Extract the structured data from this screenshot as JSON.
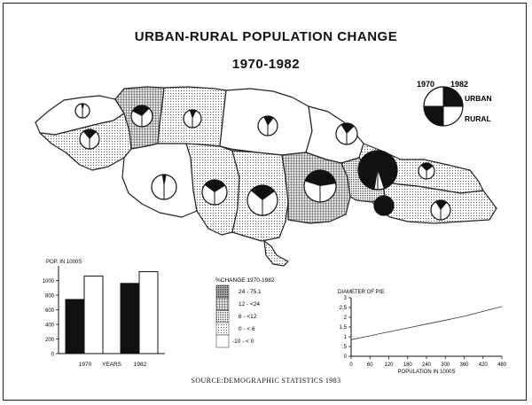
{
  "title": "URBAN-RURAL POPULATION CHANGE",
  "subtitle": "1970-1982",
  "source": "SOURCE:DEMOGRAPHIC STATISTICS 1983",
  "pie_key": {
    "year_left": "1970",
    "year_right": "1982",
    "label_urban": "URBAN",
    "label_rural": "RURAL"
  },
  "change_legend": {
    "title": "%CHANGE 1970-1982",
    "classes": [
      "24 - 75.1",
      "12 - <24",
      "6 - <12",
      "0 - < 6",
      "-10 - < 0"
    ]
  },
  "chart_data": [
    {
      "type": "bar",
      "ylabel": "POP. IN 1000S",
      "xlabel": "YEARS",
      "ylim": [
        0,
        1200
      ],
      "yticks": [
        0,
        200,
        400,
        600,
        800,
        1000
      ],
      "categories": [
        "1970",
        "1982"
      ],
      "series": [
        {
          "name": "URBAN",
          "values": [
            740,
            960
          ]
        },
        {
          "name": "RURAL",
          "values": [
            1060,
            1120
          ]
        }
      ]
    },
    {
      "type": "line",
      "title": "DIAMETER OF PIE",
      "xlabel": "POPULATION IN 1000S",
      "xlim": [
        0,
        480
      ],
      "ylim": [
        0,
        3
      ],
      "xticks": [
        0,
        60,
        120,
        180,
        240,
        300,
        360,
        420,
        480
      ],
      "yticks": [
        0,
        0.5,
        1,
        1.5,
        2,
        2.5,
        3
      ],
      "ytick_labels": [
        "0",
        ".5",
        "1",
        "1.5",
        "2",
        "2.5",
        "3"
      ],
      "x": [
        0,
        60,
        120,
        180,
        240,
        300,
        360,
        420,
        480
      ],
      "y": [
        0.85,
        1.05,
        1.25,
        1.45,
        1.65,
        1.85,
        2.05,
        2.3,
        2.55
      ]
    }
  ],
  "map_pies": [
    {
      "urban70": 0.06,
      "urban82": 0.08
    },
    {
      "urban70": 0.35,
      "urban82": 0.25
    },
    {
      "urban70": 0.1,
      "urban82": 0.14
    },
    {
      "urban70": 0.14,
      "urban82": 0.2
    },
    {
      "urban70": 0.22,
      "urban82": 0.24
    },
    {
      "urban70": 0.18,
      "urban82": 0.25
    },
    {
      "urban70": 0.05,
      "urban82": 0.06
    },
    {
      "urban70": 0.3,
      "urban82": 0.32
    },
    {
      "urban70": 0.28,
      "urban82": 0.3
    },
    {
      "urban70": 0.4,
      "urban82": 0.45
    },
    {
      "urban70": 0.95,
      "urban82": 0.9
    },
    {
      "urban70": 1.0,
      "urban82": 1.0
    },
    {
      "urban70": 0.25,
      "urban82": 0.3
    },
    {
      "urban70": 0.18,
      "urban82": 0.22
    }
  ]
}
